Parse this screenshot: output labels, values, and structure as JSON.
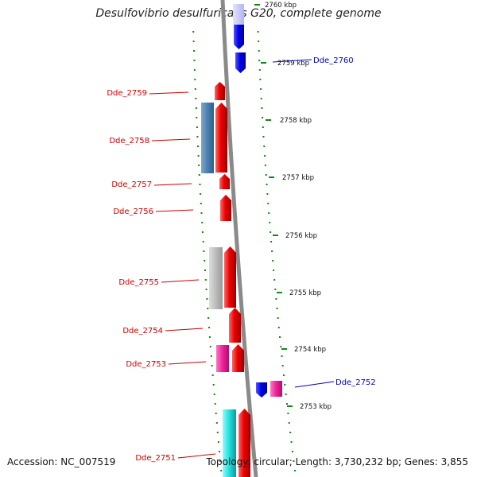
{
  "title": "Desulfovibrio desulfuricans G20, complete genome",
  "footer": {
    "accession": "Accession: NC_007519",
    "summary": "Topology: circular; Length: 3,730,232 bp; Genes: 3,855"
  },
  "colors": {
    "reverse_strand_label": "#cc0000",
    "forward_strand_label": "#0000bb",
    "backbone": "#888888",
    "tick": "#118811"
  },
  "scale_ticks": [
    "2760 kbp",
    "2759 kbp",
    "2758 kbp",
    "2757 kbp",
    "2756 kbp",
    "2755 kbp",
    "2754 kbp",
    "2753 kbp"
  ],
  "genes": [
    {
      "label": "Dde_2760",
      "color": "#0000ee",
      "strand": "forward"
    },
    {
      "label": "Dde_2759",
      "color": "#ee0000",
      "strand": "reverse"
    },
    {
      "label": "Dde_2758",
      "color": "#ee0000",
      "strand": "reverse"
    },
    {
      "label": "Dde_2757",
      "color": "#ee0000",
      "strand": "reverse"
    },
    {
      "label": "Dde_2756",
      "color": "#ee0000",
      "strand": "reverse"
    },
    {
      "label": "Dde_2755",
      "color": "#ee0000",
      "strand": "reverse"
    },
    {
      "label": "Dde_2754",
      "color": "#ee0000",
      "strand": "reverse"
    },
    {
      "label": "Dde_2753",
      "color": "#ee0000",
      "strand": "reverse"
    },
    {
      "label": "Dde_2752",
      "color": "#0000ee",
      "strand": "forward"
    },
    {
      "label": "Dde_2751",
      "color": "#ee0000",
      "strand": "reverse"
    }
  ]
}
